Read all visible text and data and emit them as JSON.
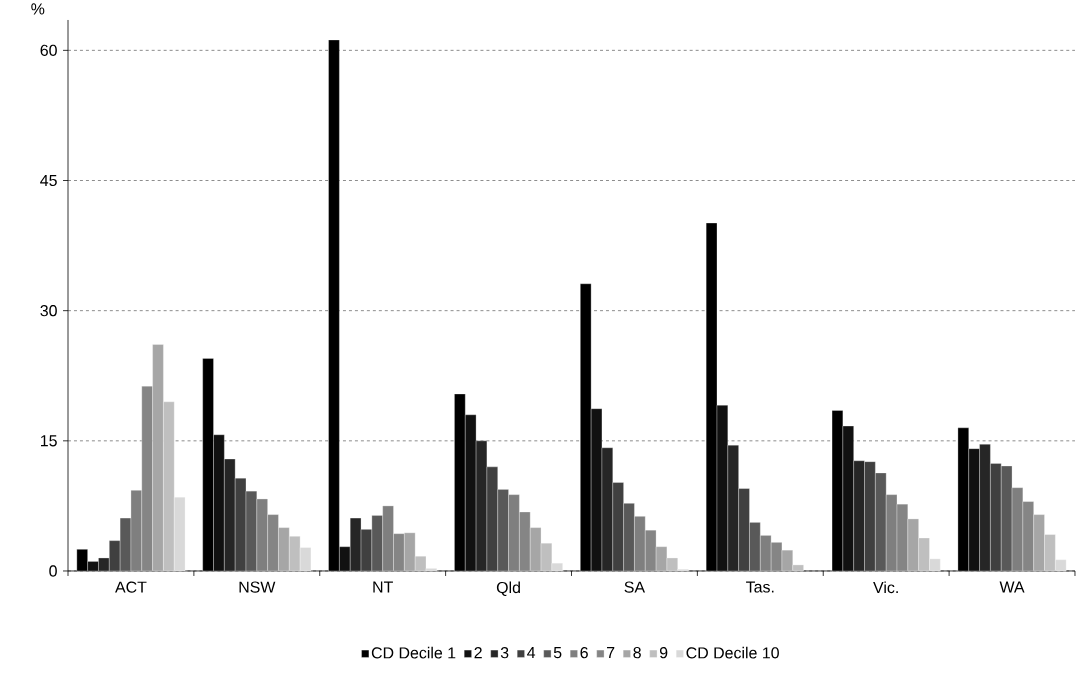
{
  "chart_data": {
    "type": "bar",
    "ylabel": "%",
    "categories": [
      "ACT",
      "NSW",
      "NT",
      "Qld",
      "SA",
      "Tas.",
      "Vic.",
      "WA"
    ],
    "ylim": [
      0,
      63.5
    ],
    "yticks": [
      0,
      15,
      30,
      45,
      60
    ],
    "grid": "y",
    "legend": "bottom",
    "series": [
      {
        "name": "CD Decile 1",
        "color": "#000000",
        "values": [
          2.5,
          24.5,
          61.2,
          20.4,
          33.1,
          40.1,
          18.5,
          16.5
        ]
      },
      {
        "name": "2",
        "color": "#111111",
        "values": [
          1.1,
          15.7,
          2.8,
          18.0,
          18.7,
          19.1,
          16.7,
          14.1
        ]
      },
      {
        "name": "3",
        "color": "#262626",
        "values": [
          1.5,
          12.9,
          6.1,
          15.0,
          14.2,
          14.5,
          12.7,
          14.6
        ]
      },
      {
        "name": "4",
        "color": "#404040",
        "values": [
          3.5,
          10.7,
          4.8,
          12.0,
          10.2,
          9.5,
          12.6,
          12.4
        ]
      },
      {
        "name": "5",
        "color": "#595959",
        "values": [
          6.1,
          9.2,
          6.4,
          9.4,
          7.8,
          5.6,
          11.3,
          12.1
        ]
      },
      {
        "name": "6",
        "color": "#7f7f7f",
        "values": [
          9.3,
          8.3,
          7.5,
          8.8,
          6.3,
          4.1,
          8.8,
          9.6
        ]
      },
      {
        "name": "7",
        "color": "#858585",
        "values": [
          21.3,
          6.5,
          4.3,
          6.8,
          4.7,
          3.3,
          7.7,
          8.0
        ]
      },
      {
        "name": "8",
        "color": "#a6a6a6",
        "values": [
          26.1,
          5.0,
          4.4,
          5.0,
          2.8,
          2.4,
          6.0,
          6.5
        ]
      },
      {
        "name": "9",
        "color": "#bfbfbf",
        "values": [
          19.5,
          4.0,
          1.7,
          3.2,
          1.5,
          0.7,
          3.8,
          4.2
        ]
      },
      {
        "name": "CD Decile 10",
        "color": "#d9d9d9",
        "values": [
          8.5,
          2.7,
          0.3,
          0.9,
          0.2,
          null,
          1.4,
          1.3
        ]
      }
    ]
  }
}
